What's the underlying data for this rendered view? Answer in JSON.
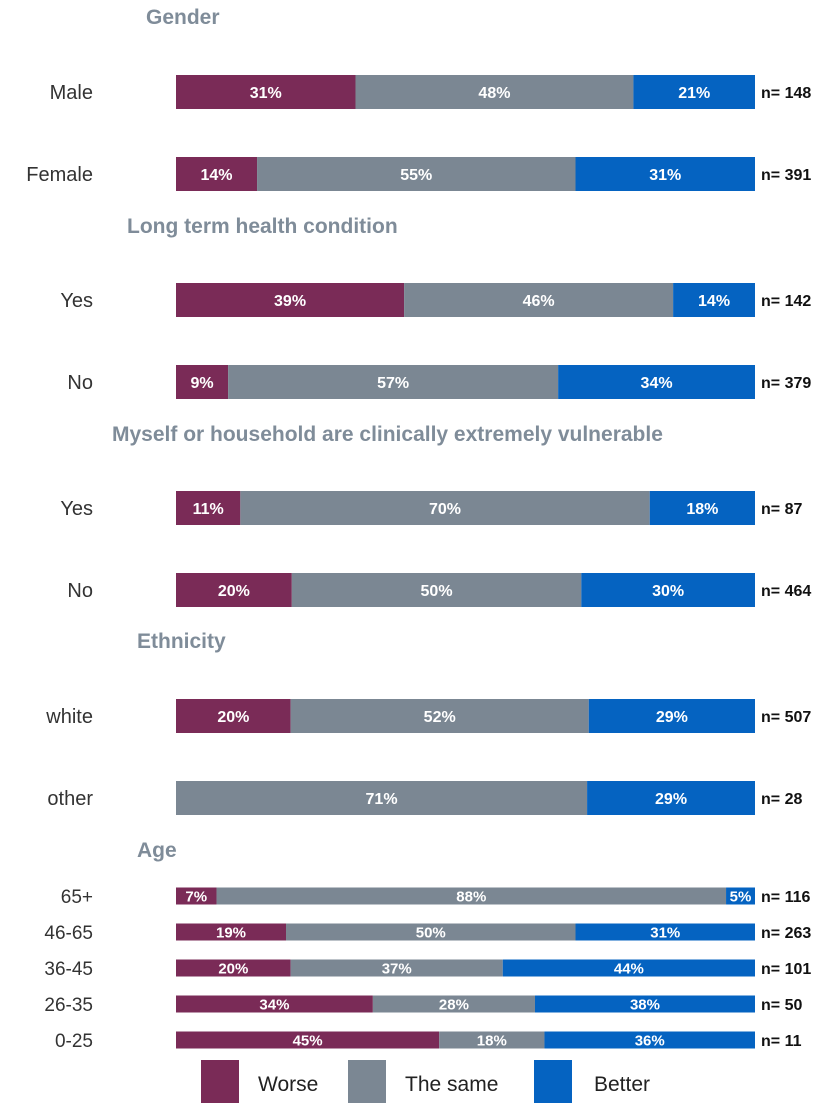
{
  "chart_data": {
    "type": "bar",
    "orientation": "horizontal",
    "stacked": true,
    "normalized_percent": true,
    "colors": {
      "Worse": "#7a2b57",
      "The same": "#7b8793",
      "Better": "#0563c1",
      "section_title": "#7f8c99"
    },
    "legend": {
      "position": "bottom",
      "entries": [
        "Worse",
        "The same",
        "Better"
      ]
    },
    "groups": [
      {
        "title": "Gender",
        "rows": [
          {
            "label": "Male",
            "values": [
              31,
              48,
              21
            ],
            "n": "n= 148"
          },
          {
            "label": "Female",
            "values": [
              14,
              55,
              31
            ],
            "n": "n= 391"
          }
        ]
      },
      {
        "title": "Long term health condition",
        "rows": [
          {
            "label": "Yes",
            "values": [
              39,
              46,
              14
            ],
            "n": "n= 142"
          },
          {
            "label": "No",
            "values": [
              9,
              57,
              34
            ],
            "n": "n= 379"
          }
        ]
      },
      {
        "title": "Myself or household are clinically extremely vulnerable",
        "rows": [
          {
            "label": "Yes",
            "values": [
              11,
              70,
              18
            ],
            "n": "n= 87"
          },
          {
            "label": "No",
            "values": [
              20,
              50,
              30
            ],
            "n": "n= 464"
          }
        ]
      },
      {
        "title": "Ethnicity",
        "rows": [
          {
            "label": "white",
            "values": [
              20,
              52,
              29
            ],
            "n": "n= 507"
          },
          {
            "label": "other",
            "values": [
              0,
              71,
              29
            ],
            "n": "n= 28"
          }
        ]
      },
      {
        "title": "Age",
        "compact": true,
        "rows": [
          {
            "label": "65+",
            "values": [
              7,
              88,
              5
            ],
            "n": "n= 116"
          },
          {
            "label": "46-65",
            "values": [
              19,
              50,
              31
            ],
            "n": "n= 263"
          },
          {
            "label": "36-45",
            "values": [
              20,
              37,
              44
            ],
            "n": "n= 101"
          },
          {
            "label": "26-35",
            "values": [
              34,
              28,
              38
            ],
            "n": "n= 50"
          },
          {
            "label": "0-25",
            "values": [
              45,
              18,
              36
            ],
            "n": "n= 11"
          }
        ]
      }
    ]
  }
}
